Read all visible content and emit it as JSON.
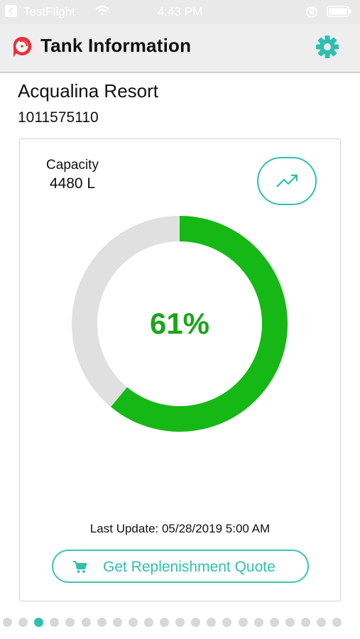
{
  "status_bar": {
    "back_app": "TestFlight",
    "time": "4:43 PM",
    "icons": [
      "back-icon",
      "wifi-icon",
      "rotation-lock-icon",
      "battery-icon"
    ]
  },
  "header": {
    "title": "Tank Information",
    "logo": "brand-logo",
    "settings_icon": "gear-icon"
  },
  "site": {
    "name": "Acqualina Resort",
    "id": "1011575110"
  },
  "tank": {
    "capacity_label": "Capacity",
    "capacity_value": "4480 L",
    "level_percent": 61,
    "level_text": "61%",
    "last_update": "Last Update: 05/28/2019 5:00 AM",
    "trend_icon": "trend-up-icon"
  },
  "actions": {
    "quote_label": "Get Replenishment Quote",
    "quote_icon": "cart-icon"
  },
  "pager": {
    "total": 22,
    "active_index": 2
  },
  "colors": {
    "accent": "#2fbfb1",
    "gauge_fill": "#16b816",
    "gauge_track": "#e0e0e0",
    "gauge_text": "#1aa61a",
    "logo_red": "#e8313a"
  }
}
